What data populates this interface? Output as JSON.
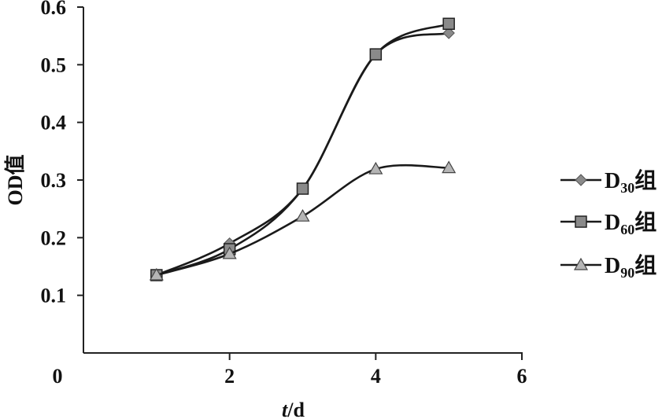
{
  "chart_data": {
    "type": "line",
    "xlabel_italic": "t",
    "xlabel_rest": "/d",
    "ylabel": "OD值",
    "xlim": [
      0,
      6
    ],
    "ylim": [
      0,
      0.6
    ],
    "x_ticks": [
      0,
      2,
      4,
      6
    ],
    "y_ticks": [
      0.1,
      0.2,
      0.3,
      0.4,
      0.5,
      0.6
    ],
    "grid": false,
    "legend_position": "right",
    "series": [
      {
        "name_main": "D",
        "name_sub": "30",
        "name_suffix": "组",
        "marker": "diamond",
        "color": "#8a8a8a",
        "x": [
          1,
          2,
          3,
          4,
          5
        ],
        "y": [
          0.135,
          0.19,
          0.285,
          0.518,
          0.555
        ]
      },
      {
        "name_main": "D",
        "name_sub": "60",
        "name_suffix": "组",
        "marker": "square",
        "color": "#8a8a8a",
        "x": [
          1,
          2,
          3,
          4,
          5
        ],
        "y": [
          0.135,
          0.18,
          0.285,
          0.518,
          0.571
        ]
      },
      {
        "name_main": "D",
        "name_sub": "90",
        "name_suffix": "组",
        "marker": "triangle",
        "color": "#b5b5b5",
        "x": [
          1,
          2,
          3,
          4,
          5
        ],
        "y": [
          0.135,
          0.172,
          0.237,
          0.319,
          0.321
        ]
      }
    ]
  }
}
